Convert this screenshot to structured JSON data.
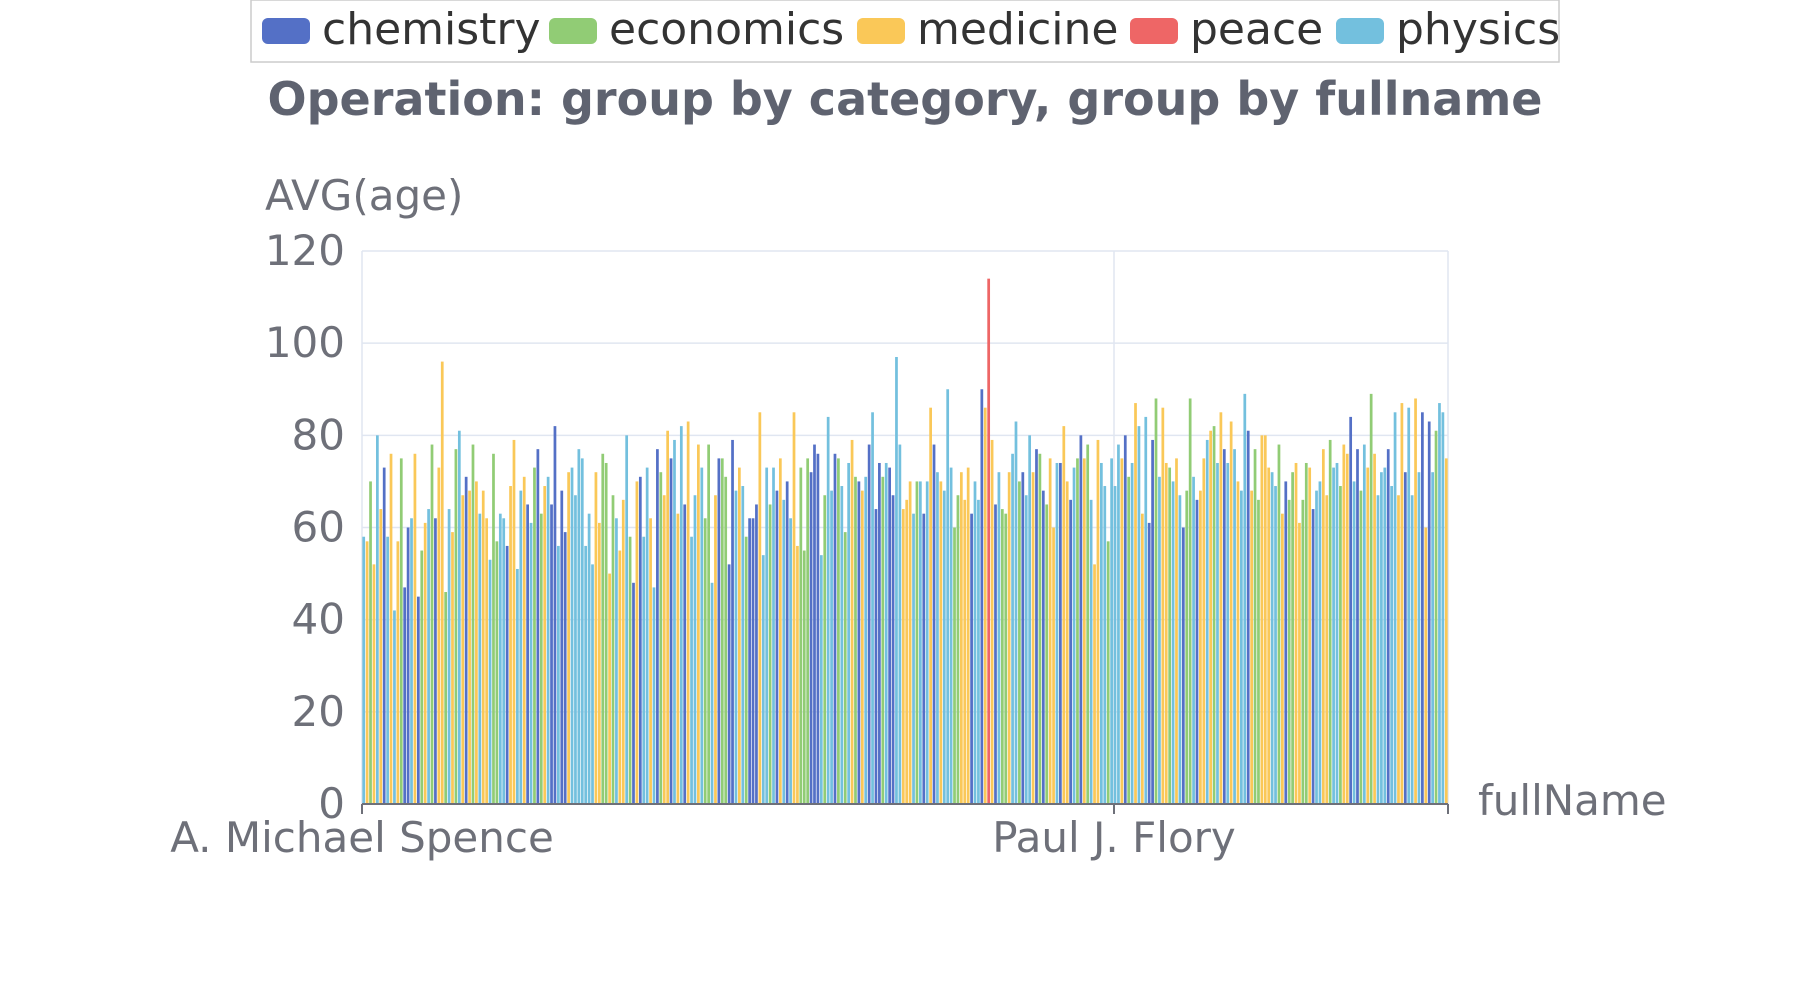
{
  "chart_data": {
    "type": "bar",
    "title": "Operation: group by category, group by fullname",
    "xlabel": "fullName",
    "ylabel": "AVG(age)",
    "ylim": [
      0,
      120
    ],
    "yticks": [
      0,
      20,
      40,
      60,
      80,
      100,
      120
    ],
    "x_tick_labels": [
      "A. Michael Spence",
      "Paul J. Flory"
    ],
    "grid": true,
    "legend_position": "top-center",
    "series": [
      {
        "name": "chemistry",
        "color": "#5470c6"
      },
      {
        "name": "economics",
        "color": "#91cc75"
      },
      {
        "name": "medicine",
        "color": "#fac858"
      },
      {
        "name": "peace",
        "color": "#ee6666"
      },
      {
        "name": "physics",
        "color": "#73c0de"
      }
    ],
    "values": [
      58,
      57,
      70,
      52,
      80,
      64,
      73,
      58,
      76,
      42,
      57,
      75,
      47,
      60,
      62,
      76,
      45,
      55,
      61,
      64,
      78,
      62,
      73,
      96,
      46,
      64,
      59,
      77,
      81,
      67,
      71,
      68,
      78,
      70,
      63,
      68,
      62,
      53,
      76,
      57,
      63,
      62,
      56,
      69,
      79,
      51,
      68,
      71,
      65,
      61,
      73,
      77,
      63,
      69,
      71,
      65,
      82,
      56,
      68,
      59,
      72,
      73,
      67,
      77,
      75,
      56,
      63,
      52,
      72,
      61,
      76,
      74,
      50,
      67,
      62,
      55,
      66,
      80,
      58,
      48,
      70,
      71,
      58,
      73,
      62,
      47,
      77,
      72,
      67,
      81,
      75,
      79,
      63,
      82,
      65,
      83,
      58,
      67,
      78,
      73,
      62,
      78,
      48,
      67,
      75,
      75,
      71,
      52,
      79,
      68,
      73,
      69,
      58,
      62,
      62,
      65,
      85,
      54,
      73,
      65,
      73,
      68,
      75,
      66,
      70,
      62,
      85,
      56,
      73,
      55,
      75,
      72,
      78,
      76,
      54,
      67,
      84,
      68,
      76,
      75,
      69,
      59,
      74,
      79,
      71,
      70,
      68,
      71,
      78,
      85,
      64,
      74,
      71,
      74,
      73,
      67,
      97,
      78,
      64,
      66,
      70,
      63,
      70,
      70,
      63,
      70,
      86,
      78,
      72,
      70,
      68,
      90,
      73,
      60,
      67,
      72,
      66,
      73,
      63,
      70,
      66,
      90,
      86,
      114,
      79,
      65,
      72,
      64,
      63,
      72,
      76,
      83,
      70,
      72,
      67,
      80,
      72,
      77,
      76,
      68,
      65,
      75,
      60,
      74,
      74,
      82,
      70,
      66,
      73,
      75,
      80,
      75,
      78,
      66,
      52,
      79,
      74,
      69,
      57,
      75,
      69,
      78,
      75,
      80,
      71,
      74,
      87,
      82,
      63,
      84,
      61,
      79,
      88,
      71,
      86,
      74,
      73,
      70,
      75,
      67,
      60,
      68,
      88,
      71,
      66,
      68,
      75,
      79,
      81,
      82,
      74,
      85,
      77,
      74,
      83,
      77,
      70,
      68,
      89,
      81,
      68,
      77,
      66,
      80,
      80,
      73,
      72,
      69,
      78,
      63,
      70,
      66,
      72,
      74,
      61,
      66,
      74,
      73,
      64,
      68,
      70,
      77,
      67,
      79,
      73,
      74,
      69,
      78,
      76,
      84,
      70,
      77,
      68,
      78,
      73,
      89,
      76,
      67,
      72,
      73,
      77,
      69,
      85,
      67,
      87,
      72,
      86,
      67,
      88,
      72,
      85,
      60,
      83,
      72,
      81,
      87,
      85,
      75
    ]
  }
}
